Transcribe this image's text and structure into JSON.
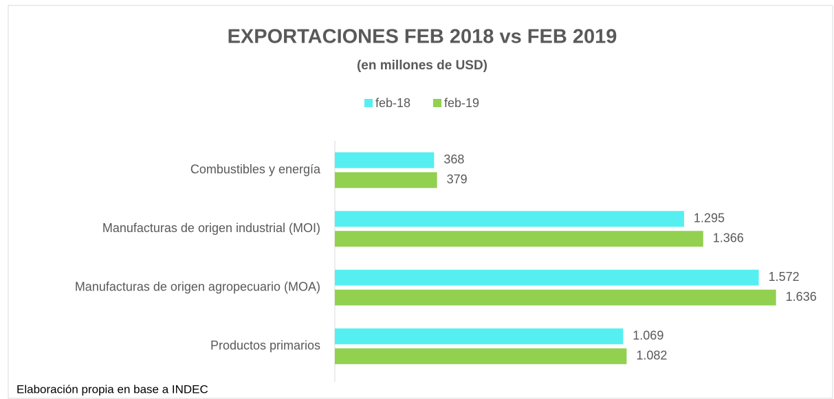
{
  "chart_data": {
    "type": "hbar",
    "title": "EXPORTACIONES FEB 2018 vs FEB 2019",
    "subtitle": "(en millones de USD)",
    "source": "Elaboración propia en base a INDEC",
    "categories": [
      "Combustibles y energía",
      "Manufacturas de origen industrial (MOI)",
      "Manufacturas de origen agropecuario (MOA)",
      "Productos primarios"
    ],
    "series": [
      {
        "name": "feb-18",
        "color": "#55eff1",
        "values": [
          368,
          1295,
          1572,
          1069
        ],
        "value_labels": [
          "368",
          "1.295",
          "1.572",
          "1.069"
        ]
      },
      {
        "name": "feb-19",
        "color": "#92d050",
        "values": [
          379,
          1366,
          1636,
          1082
        ],
        "value_labels": [
          "379",
          "1.366",
          "1.636",
          "1.082"
        ]
      }
    ],
    "xlim": [
      0,
      1800
    ],
    "legend": "top"
  }
}
